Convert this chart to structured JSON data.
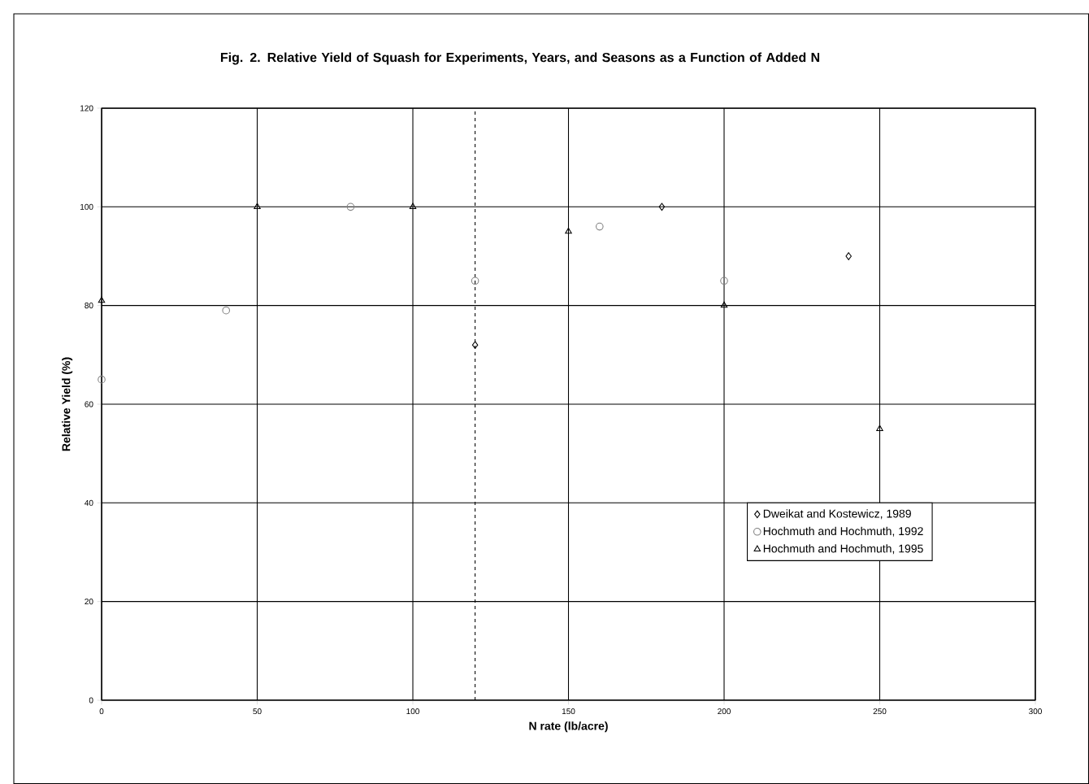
{
  "chart_data": {
    "type": "scatter",
    "title": "Fig. 2.  Relative Yield of Squash for Experiments, Years, and Seasons as a Function of Added N",
    "xlabel": "N rate (lb/acre)",
    "ylabel": "Relative Yield (%)",
    "xlim": [
      0,
      300
    ],
    "xticks": [
      0,
      50,
      100,
      150,
      200,
      250,
      300
    ],
    "ylim": [
      0,
      120
    ],
    "yticks": [
      0,
      20,
      40,
      60,
      80,
      100,
      120
    ],
    "grid": true,
    "legend": "bottom right",
    "ref_lines": [
      {
        "axis": "x",
        "value": 120,
        "line_style": "dashed",
        "color": "#000000"
      }
    ],
    "series": [
      {
        "name": "Dweikat and Kostewicz, 1989",
        "color": "#000000",
        "marker": "diamond",
        "x": [
          120,
          180,
          240
        ],
        "values": [
          72,
          100,
          90
        ]
      },
      {
        "name": "Hochmuth and Hochmuth, 1992",
        "color": "#808080",
        "marker": "circle",
        "x": [
          0,
          40,
          80,
          120,
          160,
          200
        ],
        "values": [
          65,
          79,
          100,
          85,
          96,
          85
        ]
      },
      {
        "name": "Hochmuth and Hochmuth, 1995",
        "color": "#000000",
        "marker": "triangle",
        "x": [
          0,
          50,
          100,
          150,
          200,
          250
        ],
        "values": [
          81,
          100,
          100,
          95,
          80,
          55
        ]
      }
    ]
  }
}
